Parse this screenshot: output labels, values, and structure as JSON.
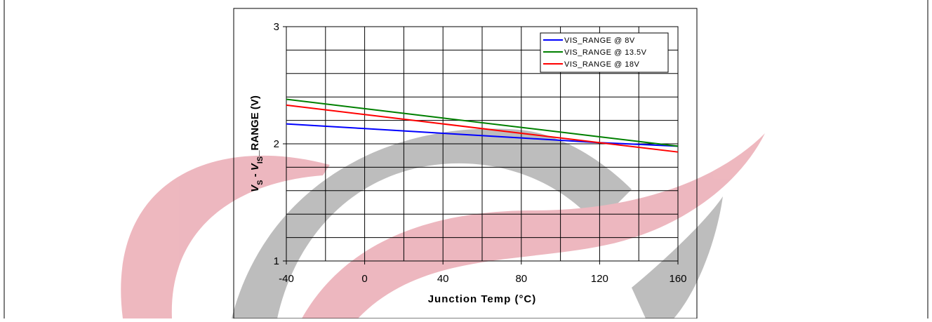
{
  "chart_data": {
    "type": "line",
    "x_label": "Junction Temp (°C)",
    "y_label": [
      {
        "text": "V",
        "style": "italic"
      },
      {
        "text": "S",
        "style": "sub"
      },
      {
        "text": " - "
      },
      {
        "text": "V",
        "style": "italic"
      },
      {
        "text": "IS",
        "style": "sub"
      },
      {
        "text": "_RANGE (V)"
      }
    ],
    "x": [
      -40,
      0,
      40,
      80,
      120,
      160
    ],
    "series": [
      {
        "name": "VIS_RANGE @ 8V",
        "color": "#0000ff",
        "values": [
          2.17,
          2.13,
          2.09,
          2.05,
          2.01,
          1.98
        ]
      },
      {
        "name": "VIS_RANGE @ 13.5V",
        "color": "#008000",
        "values": [
          2.38,
          2.3,
          2.22,
          2.14,
          2.06,
          1.98
        ]
      },
      {
        "name": "VIS_RANGE @ 18V",
        "color": "#ff0000",
        "values": [
          2.33,
          2.25,
          2.17,
          2.09,
          2.01,
          1.93
        ]
      }
    ],
    "xlim": [
      -40,
      160
    ],
    "xticks": [
      -40,
      0,
      40,
      80,
      120,
      160
    ],
    "x_minor_ticks": [
      -20,
      20,
      60,
      100,
      140
    ],
    "ylim": [
      1,
      3
    ],
    "yticks": [
      1,
      2,
      3
    ],
    "y_minor_ticks": [
      1.2,
      1.4,
      1.6,
      1.8,
      2.2,
      2.4,
      2.6,
      2.8
    ],
    "grid": true,
    "legend": "top-right"
  }
}
